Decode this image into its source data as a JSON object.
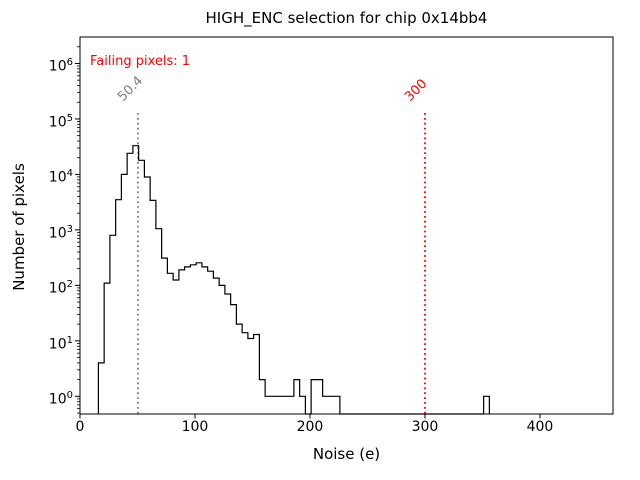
{
  "chart_data": {
    "type": "histogram-step",
    "title": "HIGH_ENC selection for chip 0x14bb4",
    "xlabel": "Noise (e)",
    "ylabel": "Number of pixels",
    "yscale": "log",
    "grid": false,
    "legend": null,
    "xlim": [
      0,
      463.5
    ],
    "ylim": [
      0.48,
      3000000
    ],
    "x_ticks": [
      0,
      100,
      200,
      300,
      400
    ],
    "y_tick_exponents": [
      0,
      1,
      2,
      3,
      4,
      5,
      6
    ],
    "line_color": "#000000",
    "annotation": {
      "text": "Failing pixels: 1",
      "color": "#ff0000"
    },
    "bin_width": 5,
    "bins": [
      [
        16,
        4
      ],
      [
        21,
        110
      ],
      [
        26,
        800
      ],
      [
        31,
        3500
      ],
      [
        36,
        10000
      ],
      [
        41,
        24000
      ],
      [
        46,
        33000
      ],
      [
        51,
        18000
      ],
      [
        56,
        9000
      ],
      [
        61,
        3400
      ],
      [
        66,
        1050
      ],
      [
        71,
        310
      ],
      [
        76,
        165
      ],
      [
        81,
        125
      ],
      [
        86,
        190
      ],
      [
        91,
        215
      ],
      [
        96,
        235
      ],
      [
        101,
        255
      ],
      [
        106,
        215
      ],
      [
        111,
        180
      ],
      [
        116,
        135
      ],
      [
        121,
        100
      ],
      [
        126,
        70
      ],
      [
        131,
        45
      ],
      [
        136,
        20
      ],
      [
        141,
        14
      ],
      [
        146,
        11
      ],
      [
        151,
        13
      ],
      [
        156,
        2
      ],
      [
        161,
        1
      ],
      [
        166,
        1
      ],
      [
        171,
        1
      ],
      [
        176,
        1
      ],
      [
        181,
        1
      ],
      [
        186,
        2
      ],
      [
        191,
        1
      ],
      [
        196,
        0
      ],
      [
        201,
        2
      ],
      [
        206,
        2
      ],
      [
        211,
        1
      ],
      [
        216,
        1
      ],
      [
        221,
        1
      ],
      [
        351,
        1
      ]
    ],
    "thresholds": [
      {
        "label": "50.4",
        "value": 50.4,
        "color": "#7f7f7f",
        "style": "dotted"
      },
      {
        "label": "300",
        "value": 300,
        "color": "#ff0000",
        "style": "dotted"
      }
    ]
  }
}
